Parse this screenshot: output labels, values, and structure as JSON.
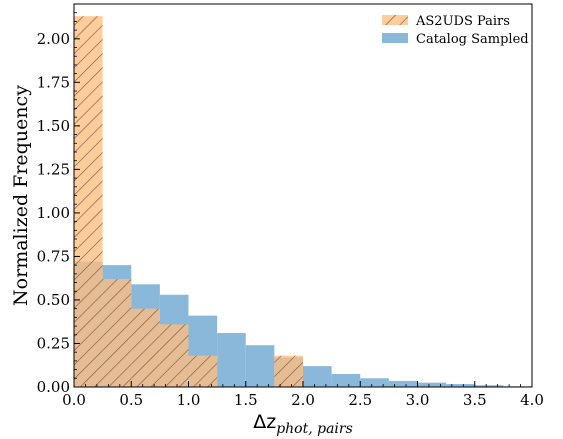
{
  "chart_data": {
    "type": "histogram",
    "xlabel": "Δz",
    "xlabel_sub": "phot, pairs",
    "ylabel": "Normalized Frequency",
    "xlim": [
      0.0,
      4.0
    ],
    "ylim": [
      0.0,
      2.2
    ],
    "xticks": [
      "0.0",
      "0.5",
      "1.0",
      "1.5",
      "2.0",
      "2.5",
      "3.0",
      "3.5",
      "4.0"
    ],
    "yticks": [
      "0.00",
      "0.25",
      "0.50",
      "0.75",
      "1.00",
      "1.25",
      "1.50",
      "1.75",
      "2.00"
    ],
    "bin_width": 0.25,
    "legend_position": "top-right",
    "series": [
      {
        "name": "AS2UDS Pairs",
        "color": "#ffbe7f",
        "hatch": true,
        "bins": [
          0.0,
          0.25,
          0.5,
          0.75,
          1.0,
          1.25,
          1.5,
          1.75,
          2.0
        ],
        "values": [
          2.13,
          0.62,
          0.45,
          0.36,
          0.18,
          0.0,
          0.0,
          0.18
        ]
      },
      {
        "name": "Catalog Sampled",
        "color": "#89b8da",
        "hatch": false,
        "bins": [
          0.0,
          0.25,
          0.5,
          0.75,
          1.0,
          1.25,
          1.5,
          1.75,
          2.0,
          2.25,
          2.5,
          2.75,
          3.0,
          3.25,
          3.5,
          3.75,
          4.0
        ],
        "values": [
          0.72,
          0.7,
          0.59,
          0.53,
          0.41,
          0.31,
          0.24,
          0.17,
          0.12,
          0.075,
          0.05,
          0.035,
          0.025,
          0.017,
          0.01,
          0.004
        ]
      }
    ]
  }
}
